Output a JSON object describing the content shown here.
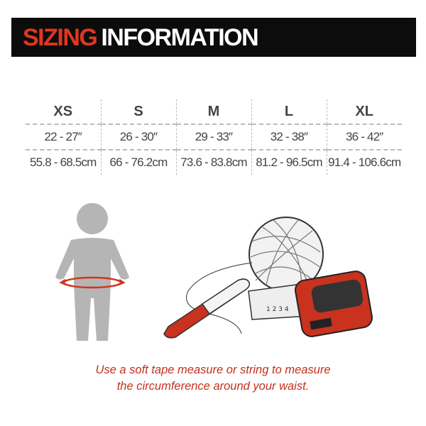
{
  "header": {
    "title_accent": "SIZING",
    "title_rest": "INFORMATION",
    "accent_color": "#e0371f"
  },
  "size_table": {
    "sizes": [
      "XS",
      "S",
      "M",
      "L",
      "XL"
    ],
    "inches": [
      "22 - 27″",
      "26 - 30″",
      "29 - 33″",
      "32 - 38″",
      "36 - 42″"
    ],
    "cm": [
      "55.8 - 68.5cm",
      "66 - 76.2cm",
      "73.6 - 83.8cm",
      "81.2 - 96.5cm",
      "91.4 - 106.6cm"
    ]
  },
  "illustrations": {
    "figure": "child-figure-with-waist-arrow",
    "tools": [
      "ball-of-string",
      "marker-pen",
      "tape-measure"
    ],
    "tape_markings": [
      "1",
      "2",
      "3",
      "4"
    ]
  },
  "caption": {
    "line1": "Use a soft tape measure or string to measure",
    "line2": "the circumference around your waist."
  }
}
